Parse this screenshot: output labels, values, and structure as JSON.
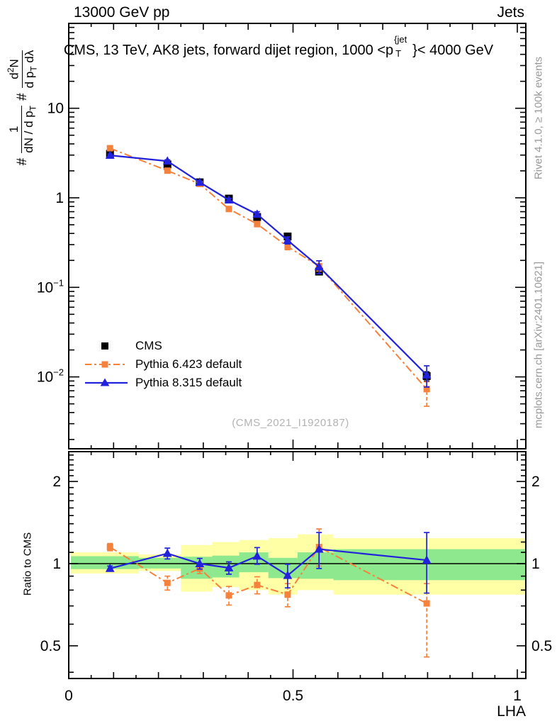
{
  "header": {
    "left": "13000 GeV pp",
    "right": "Jets"
  },
  "title": {
    "prefix": "CMS, 13 TeV, AK8 jets, forward dijet region, 1000 <p",
    "sup": "{jet",
    "sub": "T",
    "suffix": "}< 4000 GeV"
  },
  "ylabel": {
    "hash1": "#",
    "frac1": {
      "num": "1",
      "den_pre": "dN / d p",
      "den_sub": "T"
    },
    "hash2": "#",
    "frac2": {
      "num_pre": "d",
      "num_sup": "2",
      "num_post": "N",
      "den_pre": "d p",
      "den_sub": "T",
      "den_post": " dλ"
    }
  },
  "ratio_label": "Ratio to CMS",
  "xlabel": "LHA",
  "watermark": "(CMS_2021_I1920187)",
  "side_notes": {
    "top": "Rivet 4.1.0, ≥ 100k events",
    "bottom": "mcplots.cern.ch [arXiv:2401.10621]"
  },
  "legend": [
    {
      "label": "CMS"
    },
    {
      "label": "Pythia 6.423 default"
    },
    {
      "label": "Pythia 8.315 default"
    }
  ],
  "colors": {
    "cms": "#000000",
    "pythia6": "#f5823c",
    "pythia8": "#2222dc",
    "band_green": "#8ee88e",
    "band_yellow": "#ffffa6",
    "gray_text": "#999999"
  },
  "chart_data": {
    "type": "line",
    "title": "CMS, 13 TeV, AK8 jets, forward dijet region, 1000 < pT(jet) < 4000 GeV",
    "xlabel": "LHA",
    "ylabel": "# 1/(dN/dpT) # d2N/(dpT dlambda)",
    "ratio_ylabel": "Ratio to CMS",
    "x_range": [
      0,
      1.019
    ],
    "x_ticks_major": [
      0,
      0.5,
      1
    ],
    "x_tick_labels": [
      "0",
      "0.5",
      "1"
    ],
    "x_minor_step": 0.05,
    "main_panel": {
      "yscale": "log",
      "y_range": [
        0.00158,
        88
      ],
      "y_ticks": [
        {
          "v": 10,
          "base": "10",
          "exp": ""
        },
        {
          "v": 1,
          "base": "1",
          "exp": ""
        },
        {
          "v": 0.1,
          "base": "10",
          "exp": "−1"
        },
        {
          "v": 0.01,
          "base": "10",
          "exp": "−2"
        }
      ]
    },
    "ratio_panel": {
      "yscale": "log",
      "y_range": [
        0.384,
        2.57
      ],
      "y_ticks": [
        {
          "v": 2,
          "label": "2"
        },
        {
          "v": 1,
          "label": "1"
        },
        {
          "v": 0.5,
          "label": "0.5"
        }
      ],
      "y_minor_ticks": [
        0.4,
        0.6,
        0.7,
        0.8,
        0.9,
        1.1,
        1.2,
        1.3,
        1.4,
        1.5,
        1.6,
        1.7,
        1.8,
        1.9,
        2.1,
        2.2,
        2.3,
        2.4,
        2.5
      ]
    },
    "x": [
      0.092,
      0.22,
      0.292,
      0.357,
      0.42,
      0.488,
      0.558,
      0.798
    ],
    "series": [
      {
        "key": "cms",
        "name": "CMS",
        "marker": "square",
        "line": "none",
        "values": [
          3.1,
          2.36,
          1.49,
          0.98,
          0.61,
          0.37,
          0.15,
          0.0102
        ],
        "err": [
          0.12,
          0.09,
          0.05,
          0.035,
          0.025,
          0.018,
          0.01,
          0.0012
        ]
      },
      {
        "key": "pythia6",
        "name": "Pythia 6.423 default",
        "marker": "square",
        "line": "dashdot",
        "values": [
          3.58,
          2.01,
          1.43,
          0.75,
          0.51,
          0.285,
          0.172,
          0.0073
        ],
        "err_up": [
          0.15,
          0.08,
          0.05,
          0.045,
          0.035,
          0.022,
          0.026,
          0.0015
        ],
        "err_dn": [
          0.15,
          0.08,
          0.05,
          0.045,
          0.035,
          0.022,
          0.02,
          0.0026
        ],
        "ratio": [
          1.15,
          0.85,
          0.96,
          0.765,
          0.835,
          0.77,
          1.15,
          0.715
        ],
        "ratio_err_up": [
          0.035,
          0.05,
          0.04,
          0.06,
          0.06,
          0.075,
          0.19,
          0.13
        ],
        "ratio_err_dn": [
          0.035,
          0.05,
          0.04,
          0.06,
          0.06,
          0.075,
          0.17,
          0.26
        ]
      },
      {
        "key": "pythia8",
        "name": "Pythia 8.315 default",
        "marker": "triangle",
        "line": "solid",
        "values": [
          2.98,
          2.57,
          1.49,
          0.945,
          0.655,
          0.335,
          0.17,
          0.0105
        ],
        "err": [
          0.1,
          0.09,
          0.05,
          0.04,
          0.045,
          0.03,
          0.028,
          0.0028
        ],
        "ratio": [
          0.96,
          1.09,
          1.0,
          0.965,
          1.065,
          0.905,
          1.13,
          1.03
        ],
        "ratio_err_up": [
          0.02,
          0.05,
          0.045,
          0.05,
          0.08,
          0.09,
          0.17,
          0.27
        ],
        "ratio_err_dn": [
          0.02,
          0.05,
          0.045,
          0.05,
          0.07,
          0.09,
          0.17,
          0.25
        ]
      }
    ],
    "bands": {
      "edges": [
        0.005,
        0.156,
        0.25,
        0.32,
        0.38,
        0.445,
        0.51,
        0.59,
        1.019
      ],
      "yellow": [
        [
          0.92,
          1.1
        ],
        [
          0.94,
          1.08
        ],
        [
          0.79,
          1.17
        ],
        [
          0.82,
          1.2
        ],
        [
          0.8,
          1.22
        ],
        [
          0.77,
          1.24
        ],
        [
          0.8,
          1.28
        ],
        [
          0.77,
          1.24
        ]
      ],
      "green": [
        [
          0.955,
          1.065
        ],
        [
          0.96,
          1.05
        ],
        [
          0.88,
          1.06
        ],
        [
          0.89,
          1.07
        ],
        [
          0.93,
          1.1
        ],
        [
          0.885,
          1.05
        ],
        [
          0.88,
          1.1
        ],
        [
          0.87,
          1.13
        ]
      ]
    }
  }
}
